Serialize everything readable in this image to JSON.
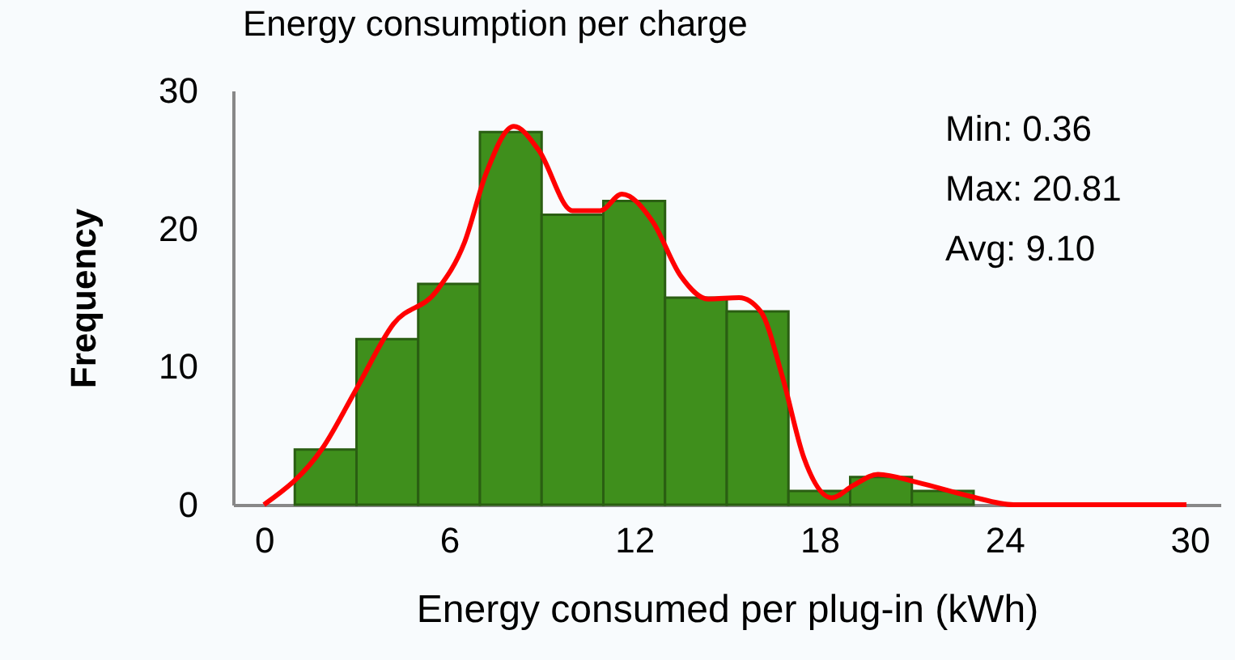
{
  "chart_data": {
    "type": "histogram",
    "title": "Energy consumption per charge",
    "xlabel": "Energy consumed per plug-in (kWh)",
    "ylabel": "Frequency",
    "bins": [
      1,
      3,
      5,
      7,
      9,
      11,
      13,
      15,
      17,
      19,
      21,
      23
    ],
    "values": [
      4,
      12,
      16,
      27,
      21,
      22,
      15,
      14,
      1,
      2,
      1
    ],
    "color": "#3f8f1c",
    "series": [
      {
        "type": "line",
        "color": "#ff0000",
        "x": [
          0,
          1.9,
          3.0,
          4.2,
          5.6,
          6.5,
          7.2,
          8.1,
          8.9,
          10.0,
          10.9,
          11.6,
          12.6,
          13.5,
          14.4,
          15.4,
          16.1,
          16.8,
          17.5,
          18.4,
          19.1,
          19.9,
          21.2,
          22.9,
          24.3,
          29.9
        ],
        "values": [
          0,
          4.1,
          8.4,
          13.1,
          15.5,
          19,
          24,
          27.4,
          25.7,
          21.3,
          21.3,
          22.5,
          20.5,
          16.6,
          14.9,
          15,
          14,
          9.3,
          3.4,
          0.5,
          1.4,
          2.2,
          1.6,
          0.6,
          0,
          0
        ]
      }
    ],
    "annotations": [
      "Min: 0.36",
      "Max: 20.81",
      "Avg: 9.10"
    ],
    "xlim": [
      -1,
      31
    ],
    "ylim": [
      0,
      30
    ],
    "xticks": [
      0,
      6,
      12,
      18,
      24,
      30
    ],
    "yticks": [
      0,
      10,
      20,
      30
    ],
    "grid": false
  }
}
